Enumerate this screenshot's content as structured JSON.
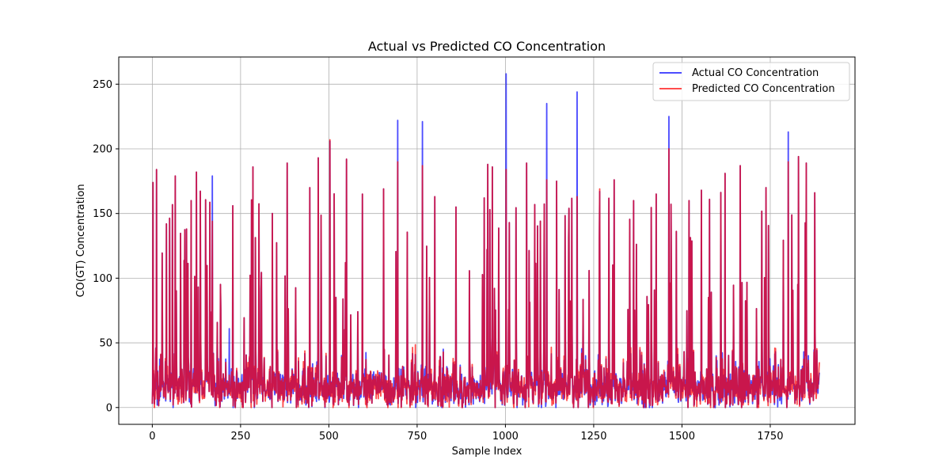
{
  "chart_data": {
    "type": "line",
    "title": "Actual vs Predicted CO Concentration",
    "xlabel": "Sample Index",
    "ylabel": "CO(GT) Concentration",
    "xlim": [
      -95,
      1990
    ],
    "ylim": [
      -13,
      271
    ],
    "xticks": [
      0,
      250,
      500,
      750,
      1000,
      1250,
      1500,
      1750
    ],
    "yticks": [
      0,
      50,
      100,
      150,
      200,
      250
    ],
    "grid": true,
    "legend_position": "top-right",
    "n_samples": 1890,
    "series": [
      {
        "name": "Actual CO Concentration",
        "color": "#0000ff",
        "opacity": 0.7,
        "peaks": [
          [
            2,
            174
          ],
          [
            12,
            184
          ],
          [
            40,
            142
          ],
          [
            65,
            179
          ],
          [
            97,
            138
          ],
          [
            110,
            160
          ],
          [
            125,
            182
          ],
          [
            170,
            179
          ],
          [
            218,
            61
          ],
          [
            228,
            156
          ],
          [
            285,
            186
          ],
          [
            340,
            150
          ],
          [
            382,
            189
          ],
          [
            446,
            170
          ],
          [
            470,
            193
          ],
          [
            503,
            206
          ],
          [
            550,
            192
          ],
          [
            595,
            165
          ],
          [
            655,
            169
          ],
          [
            695,
            222
          ],
          [
            765,
            221
          ],
          [
            800,
            163
          ],
          [
            860,
            155
          ],
          [
            940,
            162
          ],
          [
            950,
            188
          ],
          [
            963,
            186
          ],
          [
            1002,
            258
          ],
          [
            1060,
            189
          ],
          [
            1117,
            235
          ],
          [
            1145,
            175
          ],
          [
            1180,
            154
          ],
          [
            1203,
            244
          ],
          [
            1267,
            167
          ],
          [
            1308,
            176
          ],
          [
            1363,
            160
          ],
          [
            1427,
            165
          ],
          [
            1463,
            225
          ],
          [
            1520,
            160
          ],
          [
            1555,
            168
          ],
          [
            1578,
            161
          ],
          [
            1622,
            181
          ],
          [
            1665,
            187
          ],
          [
            1738,
            170
          ],
          [
            1801,
            213
          ],
          [
            1830,
            194
          ],
          [
            1852,
            189
          ]
        ],
        "tail_value": 27
      },
      {
        "name": "Predicted CO Concentration",
        "color": "#ff0000",
        "opacity": 0.7,
        "peaks": [
          [
            2,
            174
          ],
          [
            12,
            184
          ],
          [
            40,
            142
          ],
          [
            65,
            179
          ],
          [
            97,
            138
          ],
          [
            110,
            160
          ],
          [
            125,
            182
          ],
          [
            170,
            144
          ],
          [
            218,
            25
          ],
          [
            228,
            156
          ],
          [
            285,
            186
          ],
          [
            340,
            150
          ],
          [
            382,
            189
          ],
          [
            446,
            170
          ],
          [
            470,
            193
          ],
          [
            503,
            207
          ],
          [
            550,
            192
          ],
          [
            595,
            165
          ],
          [
            655,
            169
          ],
          [
            695,
            190
          ],
          [
            765,
            187
          ],
          [
            800,
            163
          ],
          [
            860,
            155
          ],
          [
            940,
            162
          ],
          [
            950,
            188
          ],
          [
            963,
            186
          ],
          [
            1002,
            184
          ],
          [
            1060,
            189
          ],
          [
            1117,
            176
          ],
          [
            1145,
            175
          ],
          [
            1180,
            154
          ],
          [
            1203,
            163
          ],
          [
            1267,
            169
          ],
          [
            1308,
            176
          ],
          [
            1363,
            160
          ],
          [
            1427,
            165
          ],
          [
            1463,
            200
          ],
          [
            1520,
            160
          ],
          [
            1555,
            168
          ],
          [
            1578,
            161
          ],
          [
            1622,
            181
          ],
          [
            1665,
            187
          ],
          [
            1738,
            170
          ],
          [
            1801,
            190
          ],
          [
            1830,
            194
          ],
          [
            1852,
            189
          ]
        ],
        "tail_value": 35
      }
    ]
  }
}
